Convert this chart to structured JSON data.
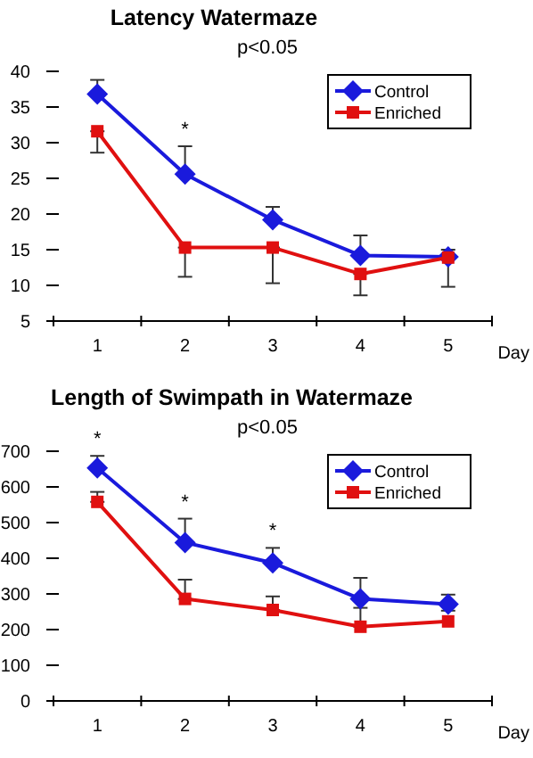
{
  "chart_data": [
    {
      "type": "line",
      "title": "Latency Watermaze",
      "subtitle": "p<0.05",
      "xlabel": "Day",
      "categories": [
        "1",
        "2",
        "3",
        "4",
        "5"
      ],
      "ylim": [
        5,
        40
      ],
      "yticks": [
        5,
        10,
        15,
        20,
        25,
        30,
        35,
        40
      ],
      "grid": false,
      "legend": "top right",
      "line_style": "solid",
      "series": [
        {
          "name": "Control",
          "color": "#1a1adc",
          "marker": "diamond",
          "values": [
            36.8,
            25.6,
            19.2,
            14.2,
            14.0
          ],
          "errors": [
            [
              36.8,
              38.8
            ],
            [
              25.6,
              29.5
            ],
            [
              19.2,
              21.0
            ],
            [
              14.2,
              17.0
            ],
            [
              14.0,
              15.0
            ]
          ]
        },
        {
          "name": "Enriched",
          "color": "#e01010",
          "marker": "square",
          "values": [
            31.6,
            15.3,
            15.3,
            11.6,
            13.9
          ],
          "errors": [
            [
              28.6,
              31.6
            ],
            [
              11.2,
              15.3
            ],
            [
              10.3,
              15.3
            ],
            [
              8.6,
              11.6
            ],
            [
              9.8,
              13.9
            ]
          ]
        }
      ],
      "annotations": [
        {
          "text": "*",
          "x": "2",
          "y": 25.6
        }
      ]
    },
    {
      "type": "line",
      "title": "Length of Swimpath in Watermaze",
      "subtitle": "p<0.05",
      "xlabel": "Day",
      "categories": [
        "1",
        "2",
        "3",
        "4",
        "5"
      ],
      "ylim": [
        0,
        700
      ],
      "yticks": [
        0,
        100,
        200,
        300,
        400,
        500,
        600,
        700
      ],
      "grid": false,
      "legend": "top right",
      "line_style": "solid",
      "series": [
        {
          "name": "Control",
          "color": "#1a1adc",
          "marker": "diamond",
          "values": [
            653,
            444,
            387,
            286,
            271
          ],
          "errors": [
            [
              653,
              687
            ],
            [
              444,
              511
            ],
            [
              387,
              429
            ],
            [
              286,
              345
            ],
            [
              253,
              298
            ]
          ]
        },
        {
          "name": "Enriched",
          "color": "#e01010",
          "marker": "square",
          "values": [
            558,
            286,
            255,
            208,
            223
          ],
          "errors": [
            [
              558,
              586
            ],
            [
              286,
              340
            ],
            [
              255,
              293
            ],
            [
              208,
              261
            ],
            null
          ]
        }
      ],
      "annotations": [
        {
          "text": "*",
          "x": "1",
          "y": 653
        },
        {
          "text": "*",
          "x": "2",
          "y": 444
        },
        {
          "text": "*",
          "x": "3",
          "y": 387
        }
      ]
    }
  ]
}
